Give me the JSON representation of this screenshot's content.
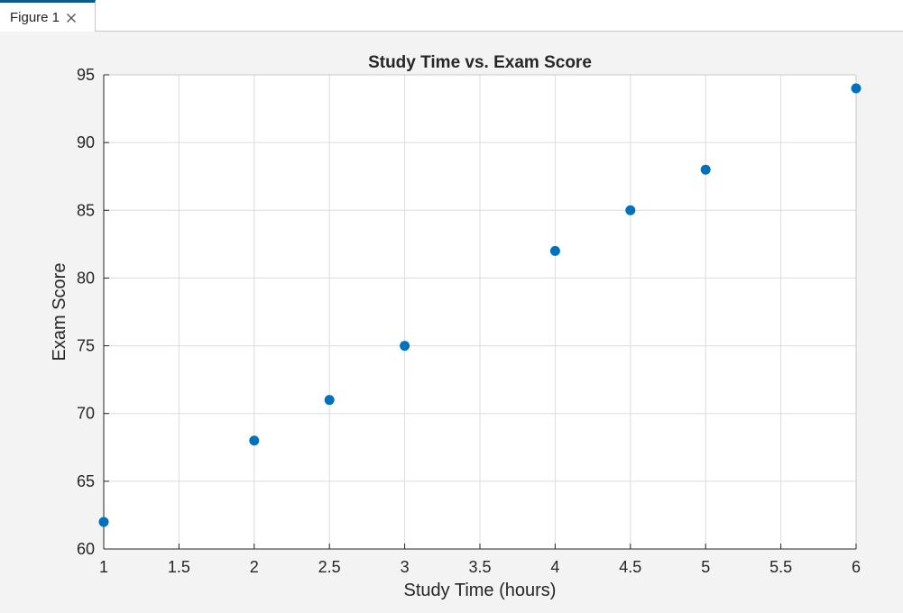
{
  "window": {
    "tab_label": "Figure 1",
    "close_icon": "close-icon"
  },
  "colors": {
    "marker": "#0072BD",
    "grid": "#dcdcdc",
    "axis": "#262626",
    "tab_accent": "#0d5a8c"
  },
  "chart_data": {
    "type": "scatter",
    "title": "Study Time vs. Exam Score",
    "xlabel": "Study Time (hours)",
    "ylabel": "Exam Score",
    "xlim": [
      1,
      6
    ],
    "ylim": [
      60,
      95
    ],
    "xticks": [
      1,
      1.5,
      2,
      2.5,
      3,
      3.5,
      4,
      4.5,
      5,
      5.5,
      6
    ],
    "yticks": [
      60,
      65,
      70,
      75,
      80,
      85,
      90,
      95
    ],
    "grid": true,
    "x": [
      1,
      2,
      2.5,
      3,
      4,
      4.5,
      5,
      6
    ],
    "y": [
      62,
      68,
      71,
      75,
      82,
      85,
      88,
      94
    ]
  }
}
